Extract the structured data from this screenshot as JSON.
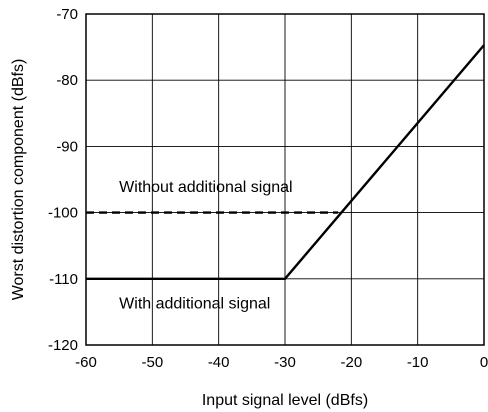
{
  "chart_data": {
    "type": "line",
    "title": "",
    "xlabel": "Input signal level (dBfs)",
    "ylabel": "Worst distortion component (dBfs)",
    "xlim": [
      -60,
      0
    ],
    "ylim": [
      -120,
      -70
    ],
    "x_ticks": [
      "-60",
      "-50",
      "-40",
      "-30",
      "-20",
      "-10",
      "0"
    ],
    "y_ticks": [
      "-70",
      "-80",
      "-90",
      "-100",
      "-110",
      "-120"
    ],
    "grid": true,
    "legend": "none",
    "series": [
      {
        "name": "Without additional signal",
        "style": "dashed",
        "color": "#000000",
        "points": [
          [
            -60,
            -100
          ],
          [
            -22,
            -100
          ]
        ]
      },
      {
        "name": "With additional signal",
        "style": "solid",
        "color": "#000000",
        "points": [
          [
            -60,
            -110
          ],
          [
            -30,
            -110
          ],
          [
            0,
            -74.7
          ]
        ]
      }
    ],
    "annotations": [
      {
        "text": "Without additional signal",
        "x": -55,
        "y": -96.9
      },
      {
        "text": "With additional signal",
        "x": -55,
        "y": -114.5
      }
    ]
  }
}
